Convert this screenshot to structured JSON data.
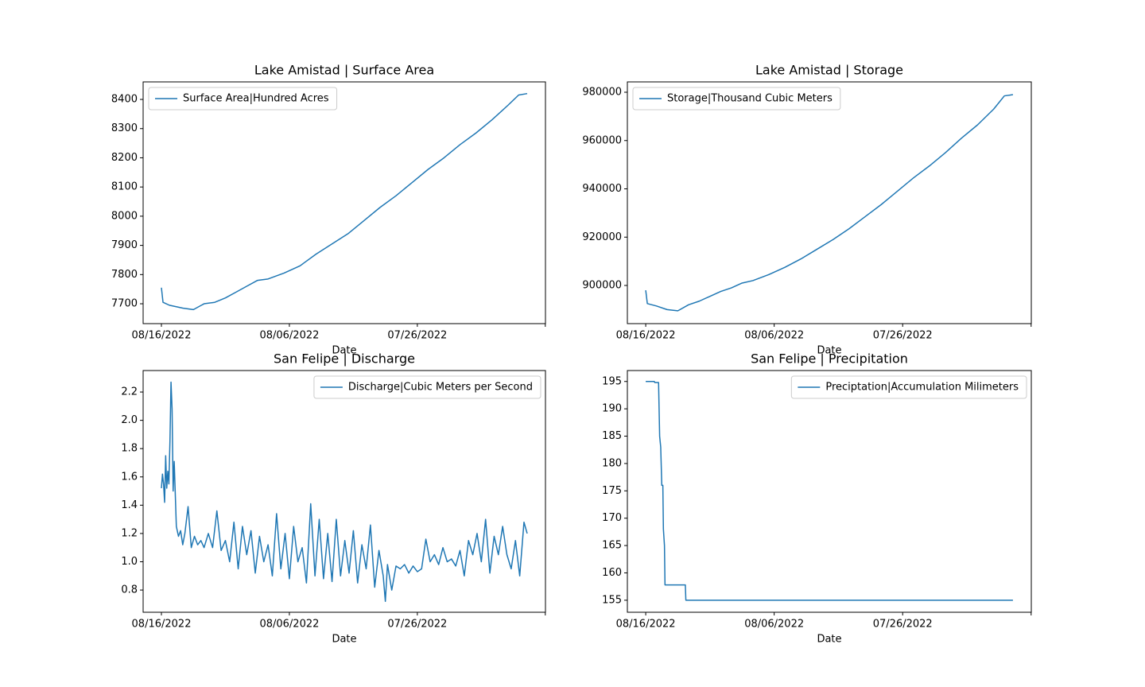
{
  "chart_data": [
    {
      "type": "line",
      "title": "Lake Amistad | Surface Area",
      "xlabel": "Date",
      "legend": "upper left",
      "x": [
        0,
        3,
        15,
        40,
        60,
        80,
        100,
        120,
        140,
        160,
        180,
        200,
        230,
        260,
        290,
        320,
        350,
        380,
        410,
        440,
        470,
        500,
        530,
        560,
        590,
        620,
        650,
        670,
        686
      ],
      "xlim": [
        -34.3,
        720.3
      ],
      "xticks": [
        {
          "value": 0,
          "label": "08/16/2022"
        },
        {
          "value": 240,
          "label": "08/06/2022"
        },
        {
          "value": 480,
          "label": "07/26/2022"
        },
        {
          "value": 720,
          "label": null
        }
      ],
      "ylim": [
        7632,
        8460
      ],
      "yticks": [
        7700,
        7800,
        7900,
        8000,
        8100,
        8200,
        8300,
        8400
      ],
      "series": [
        {
          "name": "Surface Area|Hundred Acres",
          "color": "#1f77b4",
          "values": [
            7755,
            7705,
            7695,
            7685,
            7680,
            7700,
            7705,
            7720,
            7740,
            7760,
            7780,
            7785,
            7805,
            7830,
            7870,
            7905,
            7940,
            7985,
            8030,
            8070,
            8115,
            8160,
            8200,
            8245,
            8285,
            8330,
            8380,
            8415,
            8420
          ]
        }
      ]
    },
    {
      "type": "line",
      "title": "Lake Amistad | Storage",
      "xlabel": "Date",
      "legend": "upper left",
      "x": [
        0,
        3,
        20,
        40,
        60,
        80,
        100,
        120,
        140,
        160,
        180,
        200,
        230,
        260,
        290,
        320,
        350,
        380,
        410,
        440,
        470,
        500,
        530,
        560,
        590,
        620,
        650,
        670,
        686
      ],
      "xlim": [
        -34.3,
        720.3
      ],
      "xticks": [
        {
          "value": 0,
          "label": "08/16/2022"
        },
        {
          "value": 240,
          "label": "08/06/2022"
        },
        {
          "value": 480,
          "label": "07/26/2022"
        },
        {
          "value": 720,
          "label": null
        }
      ],
      "ylim": [
        884200,
        984280
      ],
      "yticks": [
        900000,
        920000,
        940000,
        960000,
        980000
      ],
      "series": [
        {
          "name": "Storage|Thousand Cubic Meters",
          "color": "#1f77b4",
          "values": [
            898000,
            892500,
            891500,
            890000,
            889500,
            892000,
            893500,
            895500,
            897500,
            899000,
            901000,
            902000,
            904500,
            907500,
            911000,
            915000,
            919000,
            923500,
            928500,
            933500,
            939000,
            944500,
            949500,
            955000,
            961000,
            966500,
            973000,
            978500,
            979000
          ]
        }
      ]
    },
    {
      "type": "line",
      "title": "San Felipe | Discharge",
      "xlabel": "Date",
      "legend": "upper right",
      "x": [
        0,
        2,
        4,
        6,
        8,
        10,
        12,
        14,
        16,
        18,
        20,
        22,
        24,
        28,
        32,
        36,
        40,
        44,
        50,
        56,
        62,
        68,
        74,
        80,
        88,
        96,
        104,
        112,
        120,
        128,
        136,
        144,
        152,
        160,
        168,
        176,
        184,
        192,
        200,
        208,
        216,
        224,
        232,
        240,
        248,
        256,
        264,
        272,
        280,
        288,
        296,
        304,
        312,
        320,
        328,
        336,
        344,
        352,
        360,
        368,
        376,
        384,
        392,
        400,
        408,
        416,
        420,
        424,
        432,
        440,
        448,
        456,
        464,
        472,
        480,
        488,
        496,
        504,
        512,
        520,
        528,
        536,
        544,
        552,
        560,
        568,
        576,
        584,
        592,
        600,
        608,
        616,
        624,
        632,
        640,
        648,
        656,
        664,
        672,
        680,
        686
      ],
      "xlim": [
        -34.3,
        720.3
      ],
      "xticks": [
        {
          "value": 0,
          "label": "08/16/2022"
        },
        {
          "value": 240,
          "label": "08/06/2022"
        },
        {
          "value": 480,
          "label": "07/26/2022"
        },
        {
          "value": 720,
          "label": null
        }
      ],
      "ylim": [
        0.643,
        2.352
      ],
      "yticks": [
        0.8,
        {
          "value": 1,
          "label": "1.0"
        },
        1.2,
        1.4,
        1.6,
        1.8,
        {
          "value": 2,
          "label": "2.0"
        },
        2.2
      ],
      "series": [
        {
          "name": "Discharge|Cubic Meters per Second",
          "color": "#1f77b4",
          "values": [
            1.52,
            1.62,
            1.55,
            1.42,
            1.75,
            1.52,
            1.64,
            1.55,
            1.85,
            2.27,
            2.08,
            1.5,
            1.71,
            1.25,
            1.18,
            1.22,
            1.12,
            1.2,
            1.39,
            1.1,
            1.18,
            1.12,
            1.15,
            1.1,
            1.2,
            1.1,
            1.36,
            1.08,
            1.15,
            1.0,
            1.28,
            0.95,
            1.25,
            1.05,
            1.22,
            0.92,
            1.18,
            1.0,
            1.12,
            0.9,
            1.34,
            0.95,
            1.2,
            0.88,
            1.25,
            1.0,
            1.1,
            0.85,
            1.41,
            0.9,
            1.3,
            0.88,
            1.2,
            0.86,
            1.3,
            0.9,
            1.15,
            0.92,
            1.22,
            0.85,
            1.12,
            0.95,
            1.26,
            0.82,
            1.08,
            0.9,
            0.72,
            0.98,
            0.8,
            0.97,
            0.95,
            0.98,
            0.92,
            0.97,
            0.93,
            0.95,
            1.16,
            1.0,
            1.05,
            0.98,
            1.1,
            1.0,
            1.02,
            0.97,
            1.08,
            0.9,
            1.15,
            1.05,
            1.2,
            1.0,
            1.3,
            0.92,
            1.18,
            1.05,
            1.25,
            1.05,
            0.95,
            1.15,
            0.9,
            1.28,
            1.2
          ]
        }
      ]
    },
    {
      "type": "line",
      "title": "San Felipe | Precipitation",
      "xlabel": "Date",
      "legend": "upper right",
      "x": [
        0,
        16,
        17,
        24,
        26,
        28,
        30,
        32,
        33,
        35,
        36,
        74,
        75,
        686
      ],
      "xlim": [
        -34.3,
        720.3
      ],
      "xticks": [
        {
          "value": 0,
          "label": "08/16/2022"
        },
        {
          "value": 240,
          "label": "08/06/2022"
        },
        {
          "value": 480,
          "label": "07/26/2022"
        },
        {
          "value": 720,
          "label": null
        }
      ],
      "ylim": [
        152.8,
        197.0
      ],
      "yticks": [
        155,
        160,
        165,
        170,
        175,
        180,
        185,
        190,
        195
      ],
      "series": [
        {
          "name": "Preciptation|Accumulation Milimeters",
          "color": "#1f77b4",
          "values": [
            195,
            195,
            194.8,
            194.8,
            185,
            183,
            176,
            176,
            168,
            165,
            157.8,
            157.8,
            155,
            155
          ]
        }
      ]
    }
  ]
}
